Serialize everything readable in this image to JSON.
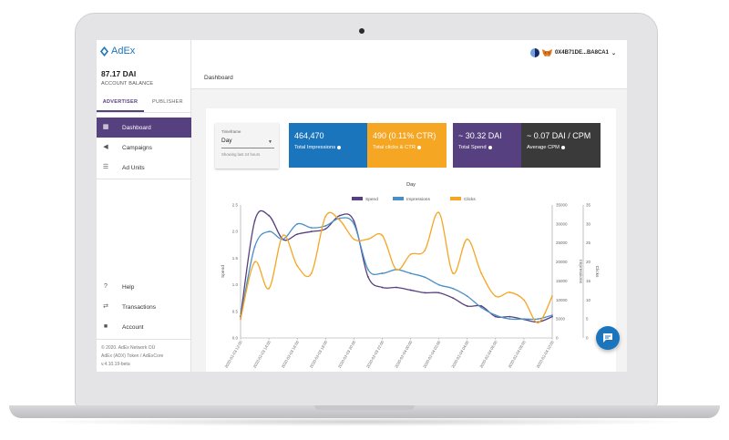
{
  "brand": {
    "name": "AdEx"
  },
  "account": {
    "balance": "87.17 DAI",
    "balance_label": "ACCOUNT BALANCE",
    "address": "0X4B71DE...BA8CA1"
  },
  "sidebar": {
    "tabs": [
      {
        "label": "ADVERTISER"
      },
      {
        "label": "PUBLISHER"
      }
    ],
    "items": [
      {
        "label": "Dashboard"
      },
      {
        "label": "Campaigns"
      },
      {
        "label": "Ad Units"
      }
    ],
    "bottom_items": [
      {
        "label": "Help"
      },
      {
        "label": "Transactions"
      },
      {
        "label": "Account"
      }
    ],
    "footer": [
      "© 2020. AdEx Network OÜ",
      "AdEx (ADX) Token / AdExCore",
      "v.4.10.19-beta"
    ]
  },
  "header": {
    "breadcrumb": "Dashboard"
  },
  "timeframe": {
    "label": "Timeframe",
    "value": "Day",
    "hint": "Showing last 24 hours"
  },
  "stats": [
    {
      "value": "464,470",
      "label": "Total Impressions",
      "color": "#1b75bc"
    },
    {
      "value": "490 (0.11% CTR)",
      "label": "Total clicks & CTR",
      "color": "#f5a623"
    },
    {
      "value": "~ 30.32 DAI",
      "label": "Total Spend",
      "color": "#57407f"
    },
    {
      "value": "~ 0.07 DAI / CPM",
      "label": "Average CPM",
      "color": "#3a3a3a"
    }
  ],
  "chart_data": {
    "type": "line",
    "title": "Day",
    "colors": {
      "Spend": "#57407f",
      "Impressions": "#4a90c8",
      "Clicks": "#f5a623"
    },
    "x": [
      "2020-02-03 12:00",
      "2020-02-03 13:00",
      "2020-02-03 14:00",
      "2020-02-03 15:00",
      "2020-02-03 16:00",
      "2020-02-03 17:00",
      "2020-02-03 18:00",
      "2020-02-03 19:00",
      "2020-02-03 20:00",
      "2020-02-03 21:00",
      "2020-02-03 22:00",
      "2020-02-03 23:00",
      "2020-02-04 00:00",
      "2020-02-04 01:00",
      "2020-02-04 02:00",
      "2020-02-04 03:00",
      "2020-02-04 04:00",
      "2020-02-04 05:00",
      "2020-02-04 06:00",
      "2020-02-04 07:00",
      "2020-02-04 08:00",
      "2020-02-04 09:00",
      "2020-02-04 10:00"
    ],
    "x_ticks": [
      "2020-02-03 12:00",
      "2020-02-03 14:00",
      "2020-02-03 16:00",
      "2020-02-03 18:00",
      "2020-02-03 20:00",
      "2020-02-03 22:00",
      "2020-02-04 00:00",
      "2020-02-04 02:00",
      "2020-02-04 04:00",
      "2020-02-04 06:00",
      "2020-02-04 08:00",
      "2020-02-04 10:00"
    ],
    "series": [
      {
        "name": "Spend",
        "axis": "left",
        "values": [
          0.4,
          2.2,
          2.3,
          1.85,
          1.95,
          2.0,
          2.05,
          2.3,
          2.2,
          1.15,
          0.95,
          0.95,
          0.9,
          0.85,
          0.85,
          0.75,
          0.6,
          0.6,
          0.4,
          0.4,
          0.35,
          0.3,
          0.4
        ]
      },
      {
        "name": "Impressions",
        "axis": "right1",
        "values": [
          5000,
          24000,
          28000,
          26000,
          30000,
          29000,
          29500,
          31500,
          30000,
          18000,
          17000,
          18000,
          17000,
          16000,
          14000,
          13000,
          11000,
          8000,
          6000,
          5000,
          5000,
          5000,
          6000
        ]
      },
      {
        "name": "Clicks",
        "axis": "right2",
        "values": [
          5,
          20,
          13,
          27,
          19,
          17,
          32,
          31,
          26,
          26,
          27,
          18,
          22,
          23,
          33,
          17,
          26,
          17,
          11,
          12,
          10,
          4,
          11
        ]
      }
    ],
    "y_left": {
      "label": "Spend",
      "ylim": [
        0,
        2.5
      ],
      "ticks": [
        0,
        0.5,
        1.0,
        1.5,
        2.0,
        2.5
      ]
    },
    "y_right1": {
      "label": "Impressions",
      "ylim": [
        0,
        35000
      ],
      "ticks": [
        0,
        5000,
        10000,
        15000,
        20000,
        25000,
        30000,
        35000
      ]
    },
    "y_right2": {
      "label": "Clicks",
      "ylim": [
        0,
        35
      ],
      "ticks": [
        0,
        5,
        10,
        15,
        20,
        25,
        30,
        35
      ]
    },
    "legend": "top-center",
    "grid": false
  }
}
